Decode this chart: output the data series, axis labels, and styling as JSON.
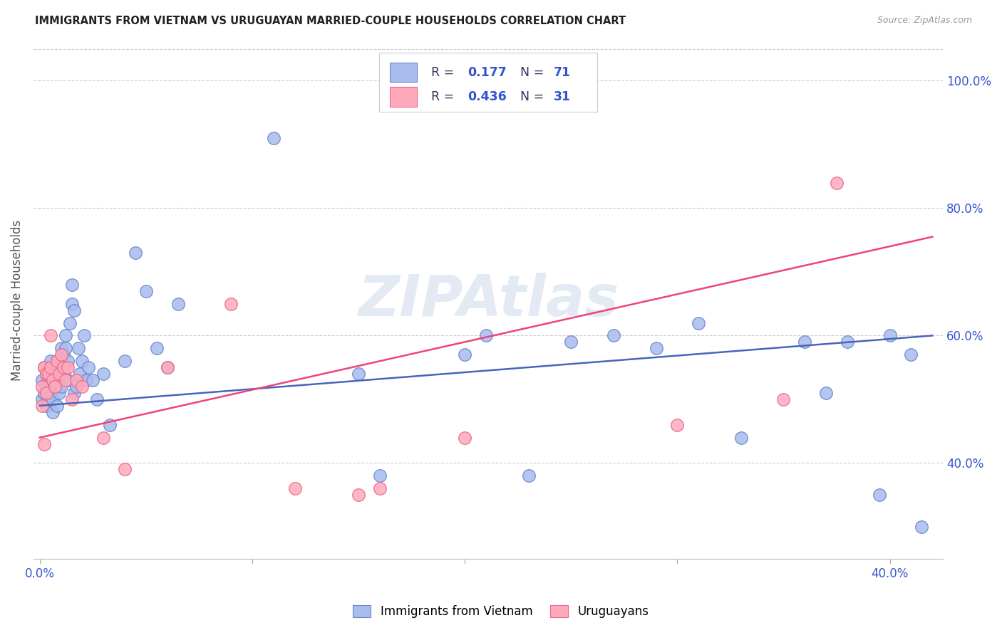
{
  "title": "IMMIGRANTS FROM VIETNAM VS URUGUAYAN MARRIED-COUPLE HOUSEHOLDS CORRELATION CHART",
  "source": "Source: ZipAtlas.com",
  "ylabel": "Married-couple Households",
  "ytick_labels": [
    "40.0%",
    "60.0%",
    "80.0%",
    "100.0%"
  ],
  "ytick_vals": [
    0.4,
    0.6,
    0.8,
    1.0
  ],
  "ylim": [
    0.25,
    1.06
  ],
  "xlim": [
    -0.003,
    0.425
  ],
  "blue_color": "#AABBEE",
  "pink_color": "#FFAABB",
  "blue_edge_color": "#6688CC",
  "pink_edge_color": "#EE6688",
  "blue_line_color": "#4466BB",
  "pink_line_color": "#EE4477",
  "blue_r": "0.177",
  "blue_n": "71",
  "pink_r": "0.436",
  "pink_n": "31",
  "legend_text_color": "#333355",
  "legend_val_color": "#3355CC",
  "legend_val_pink_color": "#EE4477",
  "blue_scatter_x": [
    0.001,
    0.001,
    0.002,
    0.002,
    0.003,
    0.003,
    0.003,
    0.004,
    0.004,
    0.005,
    0.005,
    0.005,
    0.006,
    0.006,
    0.007,
    0.007,
    0.007,
    0.008,
    0.008,
    0.008,
    0.009,
    0.009,
    0.01,
    0.01,
    0.01,
    0.011,
    0.011,
    0.012,
    0.012,
    0.013,
    0.013,
    0.014,
    0.015,
    0.015,
    0.016,
    0.016,
    0.017,
    0.018,
    0.019,
    0.02,
    0.021,
    0.022,
    0.023,
    0.025,
    0.027,
    0.03,
    0.033,
    0.04,
    0.045,
    0.05,
    0.055,
    0.06,
    0.065,
    0.11,
    0.15,
    0.16,
    0.2,
    0.21,
    0.23,
    0.25,
    0.27,
    0.29,
    0.31,
    0.33,
    0.36,
    0.37,
    0.38,
    0.395,
    0.4,
    0.41,
    0.415
  ],
  "blue_scatter_y": [
    0.5,
    0.53,
    0.51,
    0.55,
    0.49,
    0.52,
    0.54,
    0.5,
    0.53,
    0.51,
    0.54,
    0.56,
    0.5,
    0.48,
    0.52,
    0.53,
    0.55,
    0.49,
    0.54,
    0.56,
    0.51,
    0.53,
    0.58,
    0.55,
    0.52,
    0.57,
    0.54,
    0.6,
    0.58,
    0.56,
    0.53,
    0.62,
    0.65,
    0.68,
    0.64,
    0.51,
    0.52,
    0.58,
    0.54,
    0.56,
    0.6,
    0.53,
    0.55,
    0.53,
    0.5,
    0.54,
    0.46,
    0.56,
    0.73,
    0.67,
    0.58,
    0.55,
    0.65,
    0.91,
    0.54,
    0.38,
    0.57,
    0.6,
    0.38,
    0.59,
    0.6,
    0.58,
    0.62,
    0.44,
    0.59,
    0.51,
    0.59,
    0.35,
    0.6,
    0.57,
    0.3
  ],
  "pink_scatter_x": [
    0.001,
    0.001,
    0.002,
    0.002,
    0.003,
    0.003,
    0.004,
    0.005,
    0.005,
    0.006,
    0.007,
    0.008,
    0.009,
    0.01,
    0.011,
    0.012,
    0.013,
    0.015,
    0.017,
    0.02,
    0.03,
    0.04,
    0.06,
    0.09,
    0.12,
    0.15,
    0.16,
    0.2,
    0.3,
    0.35,
    0.375
  ],
  "pink_scatter_y": [
    0.49,
    0.52,
    0.43,
    0.55,
    0.51,
    0.54,
    0.54,
    0.55,
    0.6,
    0.53,
    0.52,
    0.56,
    0.54,
    0.57,
    0.55,
    0.53,
    0.55,
    0.5,
    0.53,
    0.52,
    0.44,
    0.39,
    0.55,
    0.65,
    0.36,
    0.35,
    0.36,
    0.44,
    0.46,
    0.5,
    0.84
  ],
  "blue_trend_x": [
    0.0,
    0.42
  ],
  "blue_trend_y": [
    0.49,
    0.6
  ],
  "pink_trend_x": [
    0.0,
    0.42
  ],
  "pink_trend_y": [
    0.44,
    0.755
  ],
  "xtick_vals": [
    0.0,
    0.1,
    0.2,
    0.3,
    0.4
  ],
  "xtick_labels": [
    "0.0%",
    "",
    "",
    "",
    "40.0%"
  ],
  "watermark": "ZIPAtlas",
  "legend_label_blue": "Immigrants from Vietnam",
  "legend_label_pink": "Uruguayans"
}
